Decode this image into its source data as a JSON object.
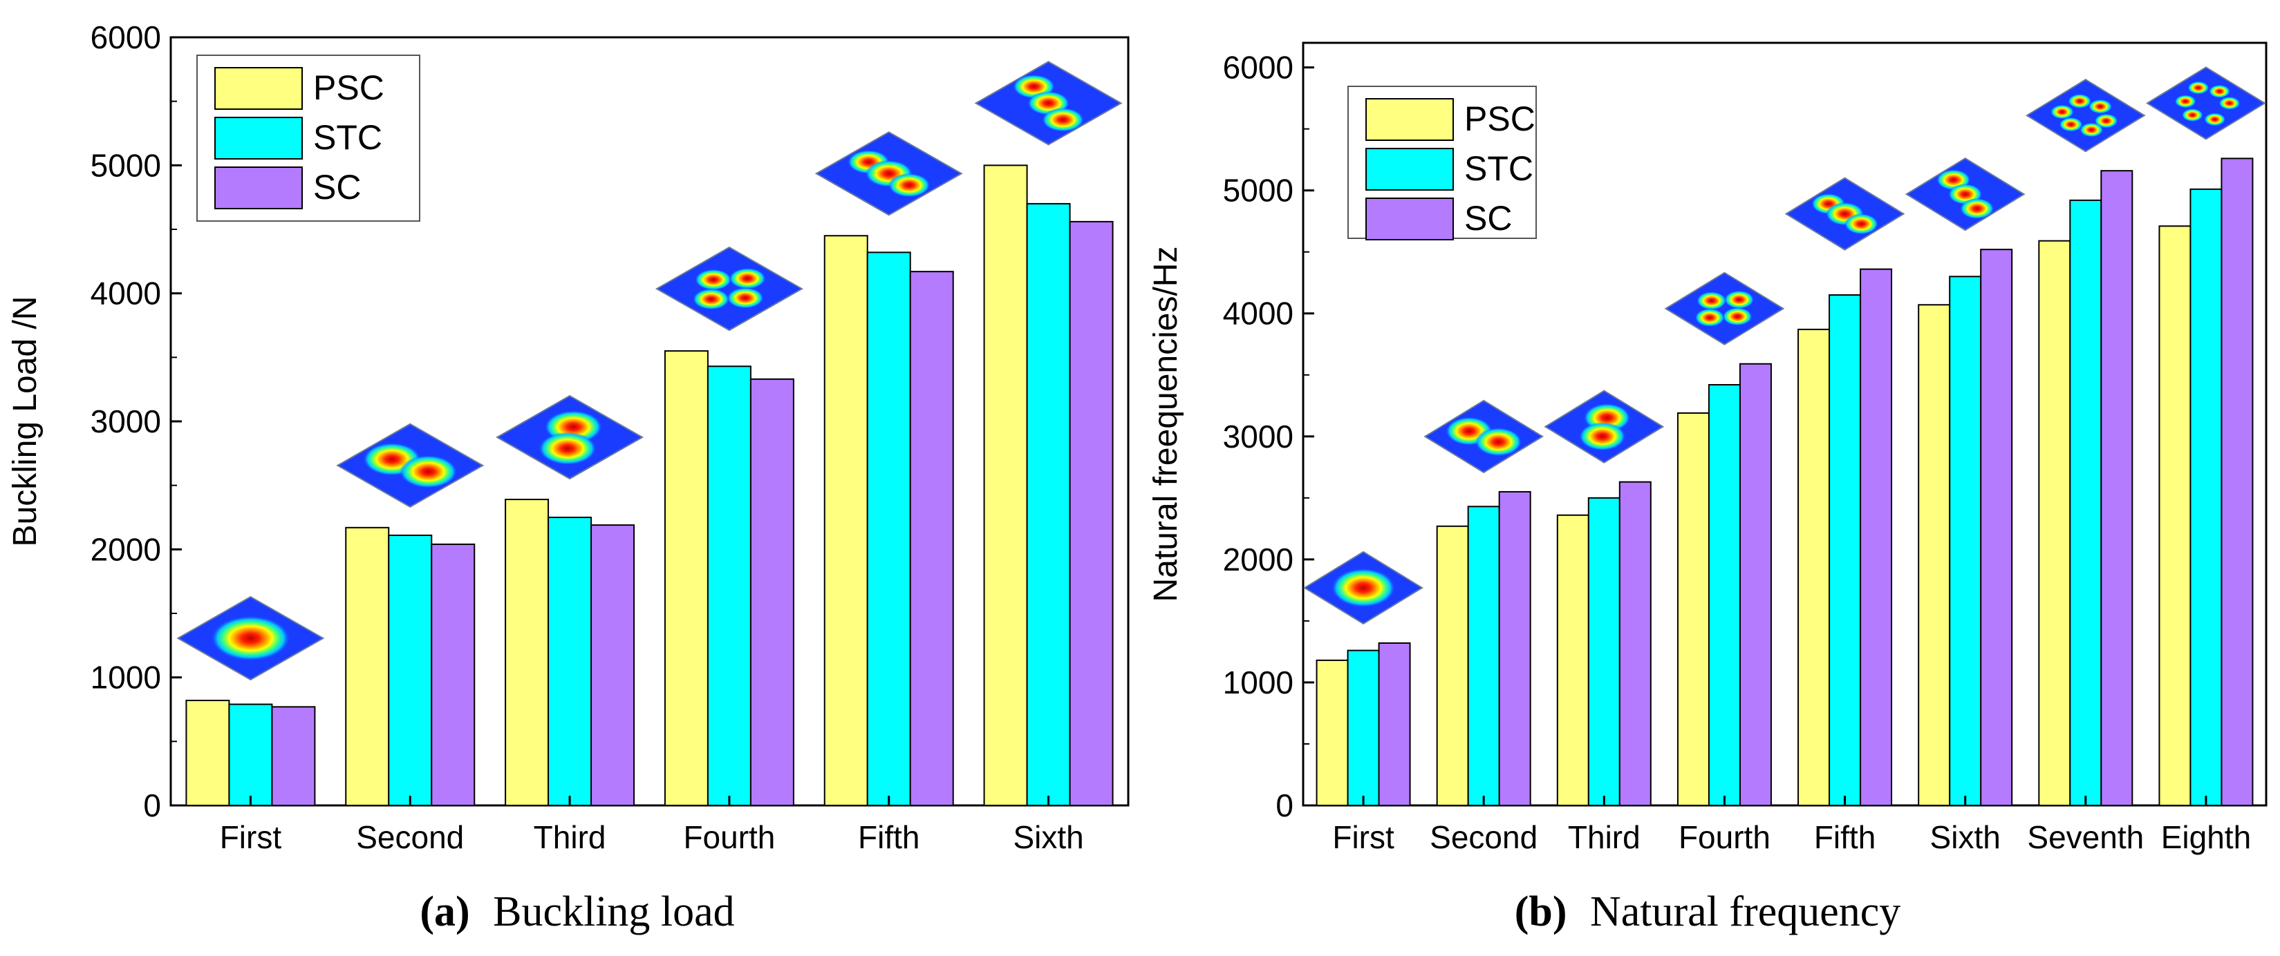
{
  "colors": {
    "PSC": "#ffff80",
    "STC": "#00ffff",
    "SC": "#b57bff",
    "axis": "#000000"
  },
  "chart_data": [
    {
      "type": "bar",
      "panel": "a",
      "caption_letter": "(a)",
      "caption_text": "Buckling load",
      "title": "",
      "xlabel": "",
      "ylabel": "Buckling Load /N",
      "ylim": [
        0,
        6000
      ],
      "yticks": [
        "0",
        "1000",
        "2000",
        "3000",
        "4000",
        "5000",
        "6000"
      ],
      "categories": [
        "First",
        "Second",
        "Third",
        "Fourth",
        "Fifth",
        "Sixth"
      ],
      "series": [
        {
          "name": "PSC",
          "values": [
            820,
            2170,
            2390,
            3550,
            4450,
            5000
          ]
        },
        {
          "name": "STC",
          "values": [
            790,
            2110,
            2250,
            3430,
            4320,
            4700
          ]
        },
        {
          "name": "SC",
          "values": [
            770,
            2040,
            2190,
            3330,
            4170,
            4560
          ]
        }
      ],
      "legend_position": "top-left",
      "grid": false,
      "mode_shape_icons": [
        "mode-1-icon",
        "mode-2-icon",
        "mode-3-icon",
        "mode-4-icon",
        "mode-5-icon",
        "mode-6-icon"
      ]
    },
    {
      "type": "bar",
      "panel": "b",
      "caption_letter": "(b)",
      "caption_text": "Natural frequency",
      "title": "",
      "xlabel": "",
      "ylabel": "Natural freequencies/Hz",
      "ylim": [
        0,
        6200
      ],
      "yticks": [
        "0",
        "1000",
        "2000",
        "3000",
        "4000",
        "5000",
        "6000"
      ],
      "categories": [
        "First",
        "Second",
        "Third",
        "Fourth",
        "Fifth",
        "Sixth",
        "Seventh",
        "Eighth"
      ],
      "series": [
        {
          "name": "PSC",
          "values": [
            1180,
            2270,
            2360,
            3190,
            3870,
            4070,
            4590,
            4710
          ]
        },
        {
          "name": "STC",
          "values": [
            1260,
            2430,
            2500,
            3420,
            4150,
            4300,
            4920,
            5010
          ]
        },
        {
          "name": "SC",
          "values": [
            1320,
            2550,
            2630,
            3590,
            4360,
            4520,
            5160,
            5260
          ]
        }
      ],
      "legend_position": "top-left",
      "grid": false,
      "mode_shape_icons": [
        "mode-1-icon",
        "mode-2-icon",
        "mode-3-icon",
        "mode-4-icon",
        "mode-5-icon",
        "mode-6-icon",
        "mode-7-icon",
        "mode-8-icon"
      ]
    }
  ]
}
